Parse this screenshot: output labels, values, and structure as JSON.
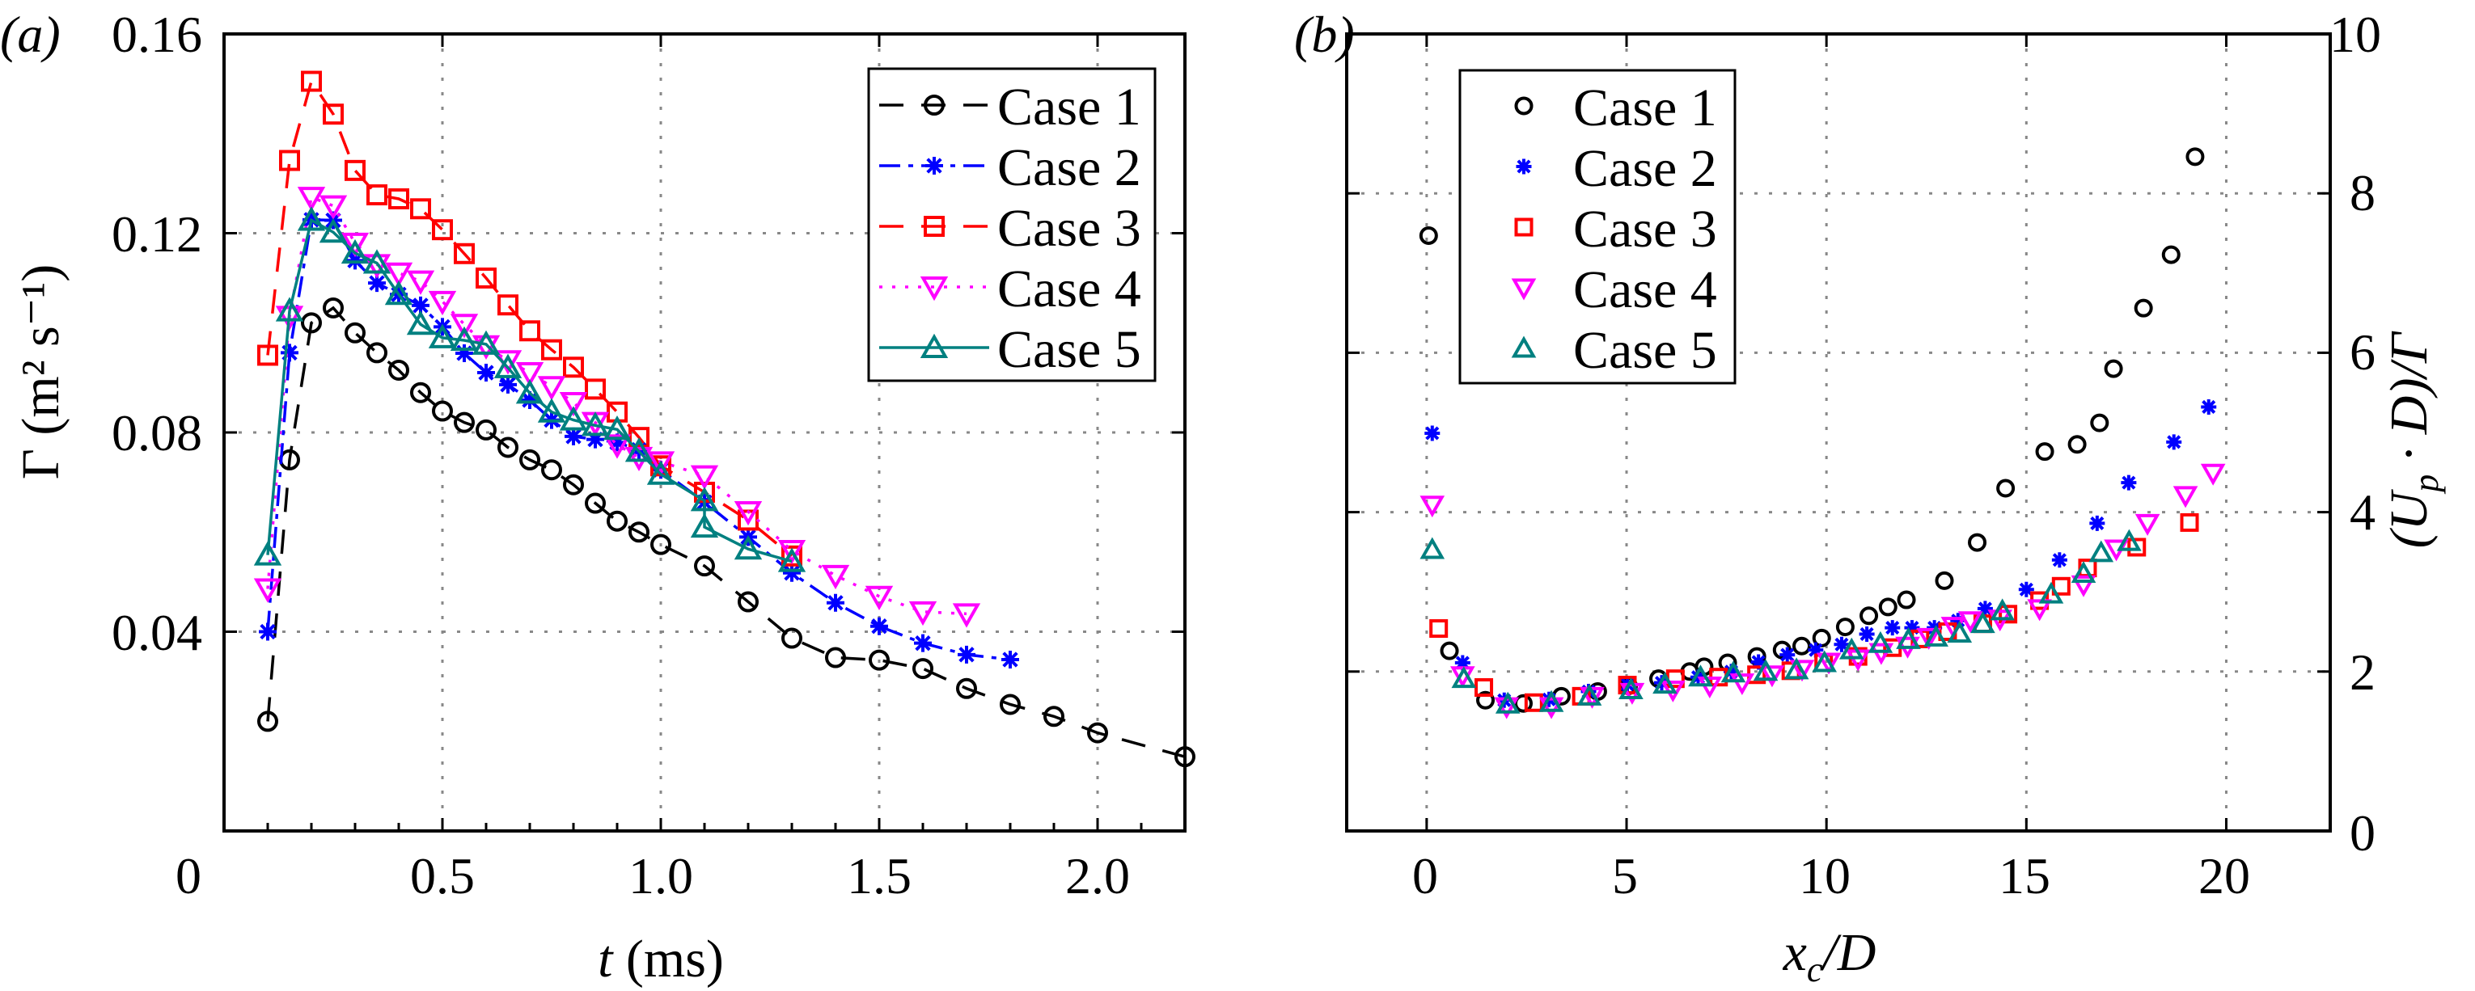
{
  "panels": {
    "a": "(a)",
    "b": "(b)"
  },
  "chart_data": [
    {
      "type": "line",
      "panel": "(a)",
      "xlabel": {
        "var": "t",
        "rest": " (ms)"
      },
      "ylabel": "Γ (m² s⁻¹)",
      "xlim": [
        0,
        2.2
      ],
      "ylim": [
        0,
        0.16
      ],
      "xticks": [
        0,
        0.5,
        1.0,
        1.5,
        2.0
      ],
      "xtick_labels": [
        "0",
        "0.5",
        "1.0",
        "1.5",
        "2.0"
      ],
      "yticks": [
        0.04,
        0.08,
        0.12,
        0.16
      ],
      "ytick_labels": [
        "0.04",
        "0.08",
        "0.12",
        "0.16"
      ],
      "grid": true,
      "legend_position": "top-right",
      "series": [
        {
          "name": "Case 1",
          "color": "#000000",
          "marker": "circle",
          "line": "dashed",
          "x": [
            0.1,
            0.15,
            0.2,
            0.25,
            0.3,
            0.35,
            0.4,
            0.45,
            0.5,
            0.55,
            0.6,
            0.65,
            0.7,
            0.75,
            0.8,
            0.85,
            0.9,
            0.95,
            1.0,
            1.1,
            1.2,
            1.3,
            1.4,
            1.5,
            1.6,
            1.7,
            1.8,
            1.9,
            2.0,
            2.2
          ],
          "y": [
            0.022,
            0.0745,
            0.102,
            0.105,
            0.1,
            0.096,
            0.0925,
            0.088,
            0.0843,
            0.082,
            0.0805,
            0.077,
            0.0745,
            0.0725,
            0.0695,
            0.0658,
            0.0622,
            0.06,
            0.0575,
            0.0532,
            0.046,
            0.0387,
            0.0348,
            0.0343,
            0.0326,
            0.0286,
            0.0254,
            0.023,
            0.0197,
            0.0149
          ]
        },
        {
          "name": "Case 2",
          "color": "#0000ff",
          "marker": "star",
          "line": "dash-dot",
          "x": [
            0.1,
            0.15,
            0.2,
            0.25,
            0.3,
            0.35,
            0.4,
            0.45,
            0.5,
            0.55,
            0.6,
            0.65,
            0.7,
            0.75,
            0.8,
            0.85,
            0.9,
            0.95,
            1.0,
            1.1,
            1.2,
            1.3,
            1.4,
            1.5,
            1.6,
            1.7,
            1.8
          ],
          "y": [
            0.04,
            0.096,
            0.1227,
            0.1226,
            0.1145,
            0.11,
            0.1077,
            0.1055,
            0.1012,
            0.0959,
            0.092,
            0.0896,
            0.0865,
            0.0825,
            0.0792,
            0.0786,
            0.078,
            0.0765,
            0.0725,
            0.066,
            0.059,
            0.0518,
            0.0458,
            0.0411,
            0.0377,
            0.0354,
            0.0344
          ]
        },
        {
          "name": "Case 3",
          "color": "#ff0000",
          "marker": "square",
          "line": "dashed",
          "x": [
            0.1,
            0.15,
            0.2,
            0.25,
            0.3,
            0.35,
            0.4,
            0.45,
            0.5,
            0.55,
            0.6,
            0.65,
            0.7,
            0.75,
            0.8,
            0.85,
            0.9,
            0.95,
            1.0,
            1.1,
            1.2,
            1.3
          ],
          "y": [
            0.0955,
            0.1346,
            0.1505,
            0.1439,
            0.1326,
            0.1277,
            0.1269,
            0.1249,
            0.1207,
            0.1159,
            0.111,
            0.1056,
            0.1004,
            0.0966,
            0.0931,
            0.0887,
            0.0841,
            0.079,
            0.0733,
            0.068,
            0.0624,
            0.0552
          ]
        },
        {
          "name": "Case 4",
          "color": "#ff00ff",
          "marker": "triangle-down",
          "line": "dotted",
          "x": [
            0.1,
            0.15,
            0.2,
            0.25,
            0.3,
            0.35,
            0.4,
            0.45,
            0.5,
            0.55,
            0.6,
            0.65,
            0.7,
            0.75,
            0.8,
            0.85,
            0.9,
            0.95,
            1.0,
            1.1,
            1.2,
            1.3,
            1.4,
            1.5,
            1.6,
            1.7
          ],
          "y": [
            0.0486,
            0.1033,
            0.1272,
            0.1255,
            0.118,
            0.1137,
            0.112,
            0.1104,
            0.1063,
            0.1017,
            0.0974,
            0.0944,
            0.092,
            0.0892,
            0.086,
            0.082,
            0.0775,
            0.075,
            0.0741,
            0.0713,
            0.0641,
            0.0563,
            0.0513,
            0.0471,
            0.044,
            0.0436
          ]
        },
        {
          "name": "Case 5",
          "color": "#008080",
          "marker": "triangle-up",
          "line": "solid",
          "x": [
            0.1,
            0.15,
            0.2,
            0.25,
            0.3,
            0.35,
            0.4,
            0.45,
            0.5,
            0.55,
            0.6,
            0.65,
            0.7,
            0.75,
            0.8,
            0.85,
            0.9,
            0.95,
            1.0,
            1.1,
            1.1,
            1.2,
            1.3
          ],
          "y": [
            0.0554,
            0.1044,
            0.1226,
            0.1202,
            0.116,
            0.114,
            0.1077,
            0.1017,
            0.099,
            0.0985,
            0.0977,
            0.093,
            0.0879,
            0.0841,
            0.0825,
            0.0814,
            0.0806,
            0.0762,
            0.0716,
            0.0663,
            0.061,
            0.0566,
            0.0541
          ]
        }
      ]
    },
    {
      "type": "scatter",
      "panel": "(b)",
      "xlabel": {
        "var": "x",
        "sub": "c",
        "rest": "/D"
      },
      "ylabel": {
        "pre": "(U",
        "sub": "p",
        "rest": " · D)/Γ"
      },
      "xlim": [
        -2,
        22.6
      ],
      "ylim": [
        0,
        10
      ],
      "xticks": [
        0,
        5,
        10,
        15,
        20
      ],
      "xtick_labels": [
        "0",
        "5",
        "10",
        "15",
        "20"
      ],
      "yticks": [
        0,
        2,
        4,
        6,
        8,
        10
      ],
      "ytick_labels": [
        "0",
        "2",
        "4",
        "6",
        "8",
        "10"
      ],
      "y_axis_side": "right",
      "grid": true,
      "legend_position": "top-left",
      "series": [
        {
          "name": "Case 1",
          "color": "#000000",
          "marker": "circle",
          "x": [
            0.05,
            0.57,
            1.47,
            2.42,
            3.37,
            4.28,
            5.05,
            5.8,
            6.58,
            6.94,
            7.53,
            8.26,
            8.89,
            9.38,
            9.88,
            10.47,
            11.06,
            11.54,
            12.0,
            12.95,
            13.77,
            14.48,
            15.46,
            16.27,
            16.83,
            17.18,
            17.93,
            18.62,
            19.22
          ],
          "y": [
            7.47,
            2.26,
            1.64,
            1.6,
            1.69,
            1.75,
            1.82,
            1.91,
            2.0,
            2.06,
            2.11,
            2.19,
            2.27,
            2.32,
            2.42,
            2.56,
            2.7,
            2.81,
            2.9,
            3.14,
            3.62,
            4.3,
            4.76,
            4.85,
            5.12,
            5.8,
            6.56,
            7.23,
            8.46
          ]
        },
        {
          "name": "Case 2",
          "color": "#0000ff",
          "marker": "star",
          "x": [
            0.14,
            0.9,
            1.94,
            3.06,
            4.05,
            5.02,
            5.88,
            6.79,
            7.62,
            8.3,
            9.02,
            9.73,
            10.38,
            11.01,
            11.65,
            12.14,
            12.7,
            13.29,
            13.97,
            15.0,
            15.83,
            16.77,
            17.56,
            18.69,
            19.56
          ],
          "y": [
            4.99,
            2.11,
            1.64,
            1.65,
            1.75,
            1.84,
            1.86,
            1.93,
            2.0,
            2.12,
            2.21,
            2.27,
            2.34,
            2.47,
            2.55,
            2.55,
            2.55,
            2.64,
            2.79,
            3.03,
            3.4,
            3.86,
            4.37,
            4.88,
            5.32
          ]
        },
        {
          "name": "Case 3",
          "color": "#ff0000",
          "marker": "square",
          "x": [
            0.3,
            1.43,
            2.68,
            3.87,
            5.02,
            6.22,
            7.3,
            8.25,
            9.11,
            9.93,
            10.79,
            11.65,
            12.34,
            13.03,
            13.91,
            14.54,
            15.33,
            15.87,
            16.53,
            17.76,
            19.08
          ],
          "y": [
            2.54,
            1.8,
            1.61,
            1.69,
            1.83,
            1.91,
            1.93,
            1.96,
            2.01,
            2.11,
            2.19,
            2.3,
            2.41,
            2.5,
            2.6,
            2.72,
            2.89,
            3.07,
            3.3,
            3.56,
            3.87
          ]
        },
        {
          "name": "Case 4",
          "color": "#ff00ff",
          "marker": "triangle-down",
          "x": [
            0.14,
            0.9,
            2.0,
            3.12,
            4.14,
            5.14,
            6.16,
            7.08,
            7.89,
            8.64,
            9.39,
            10.06,
            10.79,
            11.37,
            12.03,
            12.56,
            13.17,
            13.6,
            14.34,
            15.33,
            16.43,
            17.25,
            18.03,
            18.98,
            19.67
          ],
          "y": [
            4.09,
            1.95,
            1.56,
            1.56,
            1.69,
            1.74,
            1.77,
            1.82,
            1.86,
            1.96,
            2.03,
            2.12,
            2.16,
            2.24,
            2.32,
            2.43,
            2.57,
            2.64,
            2.66,
            2.79,
            3.09,
            3.54,
            3.86,
            4.21,
            4.49
          ]
        },
        {
          "name": "Case 5",
          "color": "#008080",
          "marker": "triangle-up",
          "x": [
            0.14,
            0.93,
            2.03,
            3.12,
            4.07,
            5.11,
            5.96,
            6.85,
            7.67,
            8.48,
            9.25,
            9.95,
            10.63,
            11.35,
            12.05,
            12.74,
            13.33,
            13.91,
            14.4,
            15.62,
            16.43,
            16.87,
            17.57
          ],
          "y": [
            3.53,
            1.91,
            1.59,
            1.61,
            1.69,
            1.77,
            1.84,
            1.93,
            1.98,
            2.0,
            2.02,
            2.11,
            2.27,
            2.35,
            2.4,
            2.43,
            2.48,
            2.6,
            2.76,
            2.97,
            3.23,
            3.49,
            3.63
          ]
        }
      ]
    }
  ]
}
